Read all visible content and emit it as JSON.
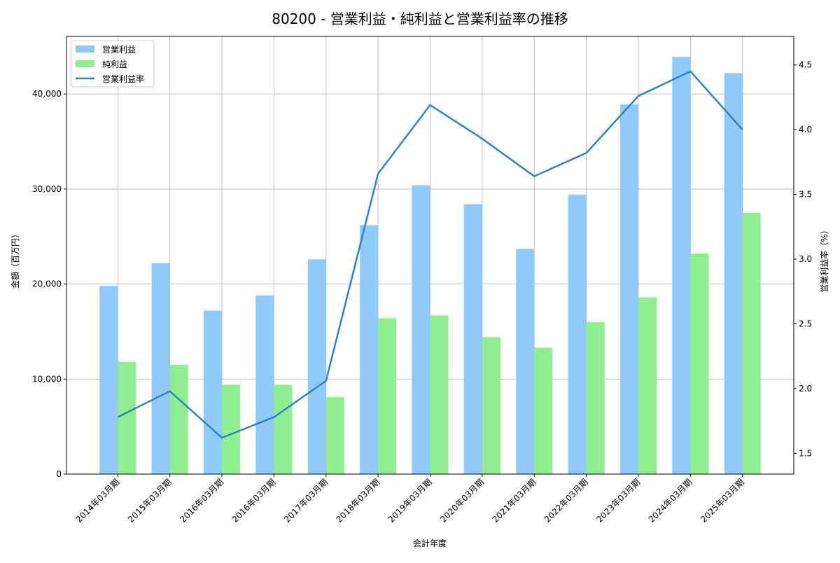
{
  "chart_data": {
    "type": "bar",
    "title": "80200 - 営業利益・純利益と営業利益率の推移",
    "xlabel": "会計年度",
    "ylabel": "金額（百万円）",
    "y2label": "営業利益率（%）",
    "ylim": [
      0,
      46060
    ],
    "y2lim": [
      1.34,
      4.72
    ],
    "yticks": [
      0,
      10000,
      20000,
      30000,
      40000
    ],
    "ytick_labels": [
      "0",
      "10,000",
      "20,000",
      "30,000",
      "40,000"
    ],
    "y2ticks": [
      1.5,
      2.0,
      2.5,
      3.0,
      3.5,
      4.0,
      4.5
    ],
    "y2tick_labels": [
      "1.5",
      "2.0",
      "2.5",
      "3.0",
      "3.5",
      "4.0",
      "4.5"
    ],
    "grid": true,
    "legend_position": "top-left",
    "categories": [
      "2014年03月期",
      "2015年03月期",
      "2016年03月期",
      "2016年03月期",
      "2017年03月期",
      "2018年03月期",
      "2019年03月期",
      "2020年03月期",
      "2021年03月期",
      "2022年03月期",
      "2023年03月期",
      "2024年03月期",
      "2025年03月期"
    ],
    "series": [
      {
        "name": "営業利益",
        "type": "bar",
        "axis": "left",
        "color": "#90caf9",
        "values": [
          19800,
          22200,
          17200,
          18800,
          22600,
          26200,
          30400,
          28400,
          23700,
          29400,
          38900,
          43900,
          42200
        ]
      },
      {
        "name": "純利益",
        "type": "bar",
        "axis": "left",
        "color": "#90ee90",
        "values": [
          11800,
          11500,
          9400,
          9400,
          8100,
          16400,
          16700,
          14400,
          13300,
          16000,
          18600,
          23200,
          27500
        ]
      },
      {
        "name": "営業利益率",
        "type": "line",
        "axis": "right",
        "color": "#2e86c1",
        "values": [
          1.78,
          1.98,
          1.62,
          1.78,
          2.06,
          3.66,
          4.19,
          3.93,
          3.64,
          3.82,
          4.26,
          4.45,
          4.0
        ]
      }
    ]
  }
}
